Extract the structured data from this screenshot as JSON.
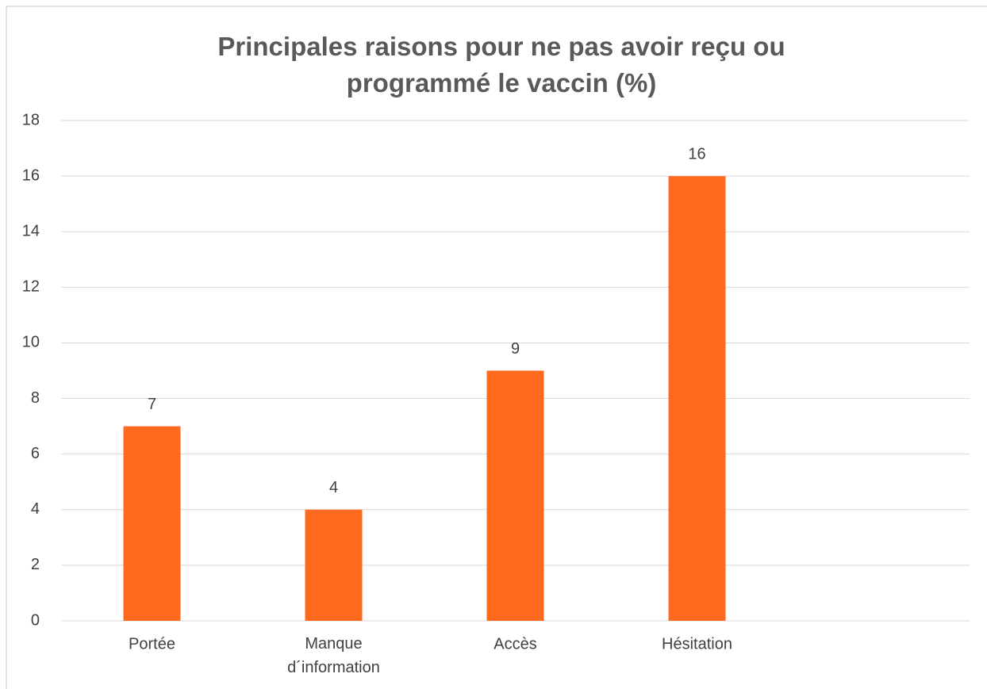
{
  "chart_data": {
    "type": "bar",
    "title": "Principales raisons pour ne pas avoir reçu ou programmé le vaccin (%)",
    "categories": [
      "Portée",
      "Manque d´information",
      "Accès",
      "Hésitation",
      null
    ],
    "values": [
      7,
      4,
      9,
      16,
      null
    ],
    "color": "#ff6a1f",
    "ylim": [
      0,
      18
    ],
    "yticks": [
      0,
      2,
      4,
      6,
      8,
      10,
      12,
      14,
      16,
      18
    ],
    "grid": true
  }
}
